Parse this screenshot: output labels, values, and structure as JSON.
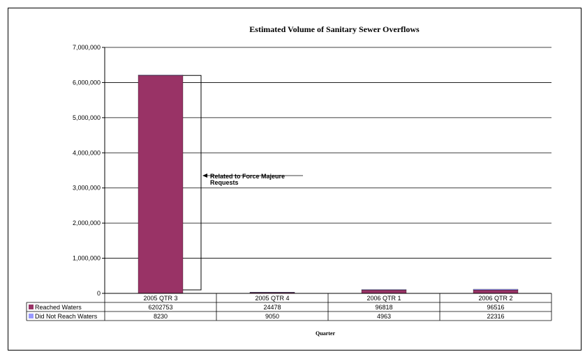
{
  "chart_data": {
    "type": "bar",
    "title": "Estimated Volume of Sanitary Sewer Overflows",
    "xlabel": "Quarter",
    "ylabel": "",
    "categories": [
      "2005 QTR 3",
      "2005 QTR 4",
      "2006 QTR 1",
      "2006 QTR 2"
    ],
    "ylim": [
      0,
      7000000
    ],
    "yticks": [
      0,
      1000000,
      2000000,
      3000000,
      4000000,
      5000000,
      6000000,
      7000000
    ],
    "ytick_labels": [
      "0",
      "1,000,000",
      "2,000,000",
      "3,000,000",
      "4,000,000",
      "5,000,000",
      "6,000,000",
      "7,000,000"
    ],
    "grid": true,
    "legend": "data-table",
    "series": [
      {
        "name": "Reached Waters",
        "values": [
          6202753,
          24478,
          96818,
          96516
        ],
        "value_labels": [
          "6202753",
          "24478",
          "96818",
          "96516"
        ],
        "color": "#993366"
      },
      {
        "name": "Did Not Reach Waters",
        "values": [
          8230,
          9050,
          4963,
          22316
        ],
        "value_labels": [
          "8230",
          "9050",
          "4963",
          "22316"
        ],
        "color": "#9999ff"
      }
    ],
    "annotation": {
      "text_line1": "Related to Force Majeure",
      "text_line2": "Requests"
    }
  }
}
